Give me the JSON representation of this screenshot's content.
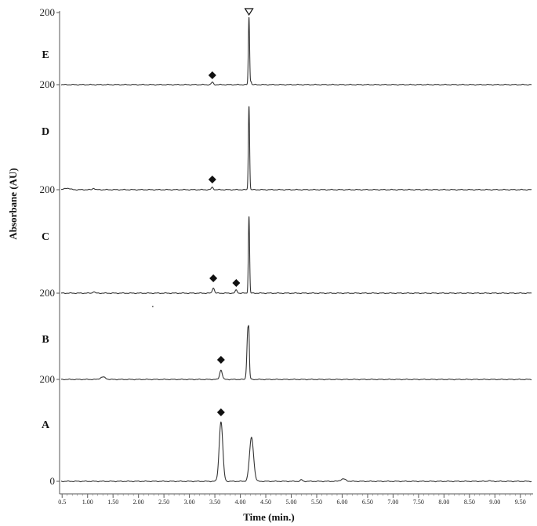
{
  "chart_data": {
    "type": "line",
    "xlabel": "Time (min.)",
    "ylabel": "Absorbane (AU)",
    "xlim": [
      0.45,
      9.75
    ],
    "xticks": [
      "0.5",
      "1.00",
      "1.50",
      "2.00",
      "2.50",
      "3.00",
      "3.50",
      "4.00",
      "4.50",
      "5.00",
      "5.50",
      "6.00",
      "6.50",
      "7.00",
      "7.50",
      "8.00",
      "8.50",
      "9.00",
      "9.50"
    ],
    "xtick_values": [
      0.5,
      1.0,
      1.5,
      2.0,
      2.5,
      3.0,
      3.5,
      4.0,
      4.5,
      5.0,
      5.5,
      6.0,
      6.5,
      7.0,
      7.5,
      8.0,
      8.5,
      9.0,
      9.5
    ],
    "grid": false,
    "legend": "none",
    "series": [
      {
        "name": "E",
        "baseline_label": "200",
        "top_label": "200",
        "peaks": [
          {
            "time": 3.45,
            "height": 3,
            "width": 0.02
          },
          {
            "time": 4.17,
            "height": 86,
            "width": 0.012
          },
          {
            "time": 4.21,
            "height": 4,
            "width": 0.01
          }
        ],
        "markers": [
          {
            "type": "diamond",
            "time": 3.45,
            "level": 12
          },
          {
            "type": "open-triangle",
            "time": 4.17,
            "level": 93
          }
        ]
      },
      {
        "name": "D",
        "baseline_label": "200",
        "peaks": [
          {
            "time": 0.6,
            "height": 2,
            "width": 0.05
          },
          {
            "time": 1.12,
            "height": 2,
            "width": 0.02
          },
          {
            "time": 3.45,
            "height": 3,
            "width": 0.02
          },
          {
            "time": 4.17,
            "height": 107,
            "width": 0.012
          }
        ],
        "markers": [
          {
            "type": "diamond",
            "time": 3.45,
            "level": 13
          }
        ]
      },
      {
        "name": "C",
        "baseline_label": "200",
        "peaks": [
          {
            "time": 1.12,
            "height": 2,
            "width": 0.02
          },
          {
            "time": 3.47,
            "height": 7,
            "width": 0.02
          },
          {
            "time": 3.92,
            "height": 4,
            "width": 0.02
          },
          {
            "time": 4.17,
            "height": 98,
            "width": 0.012
          }
        ],
        "markers": [
          {
            "type": "diamond",
            "time": 3.47,
            "level": 19
          },
          {
            "type": "diamond",
            "time": 3.92,
            "level": 13
          }
        ]
      },
      {
        "name": "B",
        "baseline_label": "200",
        "peaks": [
          {
            "time": 1.3,
            "height": 3,
            "width": 0.05
          },
          {
            "time": 3.62,
            "height": 12,
            "width": 0.025
          },
          {
            "time": 4.15,
            "height": 66,
            "width": 0.02
          },
          {
            "time": 4.17,
            "height": 22,
            "width": 0.008
          }
        ],
        "markers": [
          {
            "type": "diamond",
            "time": 3.62,
            "level": 25
          }
        ]
      },
      {
        "name": "A",
        "baseline_label": "0",
        "peaks": [
          {
            "time": 3.62,
            "height": 76,
            "width": 0.035
          },
          {
            "time": 4.22,
            "height": 56,
            "width": 0.04
          },
          {
            "time": 5.2,
            "height": 2,
            "width": 0.02
          },
          {
            "time": 6.02,
            "height": 3,
            "width": 0.05
          },
          {
            "time": 8.88,
            "height": 1,
            "width": 0.02
          }
        ],
        "markers": [
          {
            "type": "diamond",
            "time": 3.62,
            "level": 88
          }
        ]
      }
    ],
    "stray_dot": {
      "time": 2.28
    }
  }
}
